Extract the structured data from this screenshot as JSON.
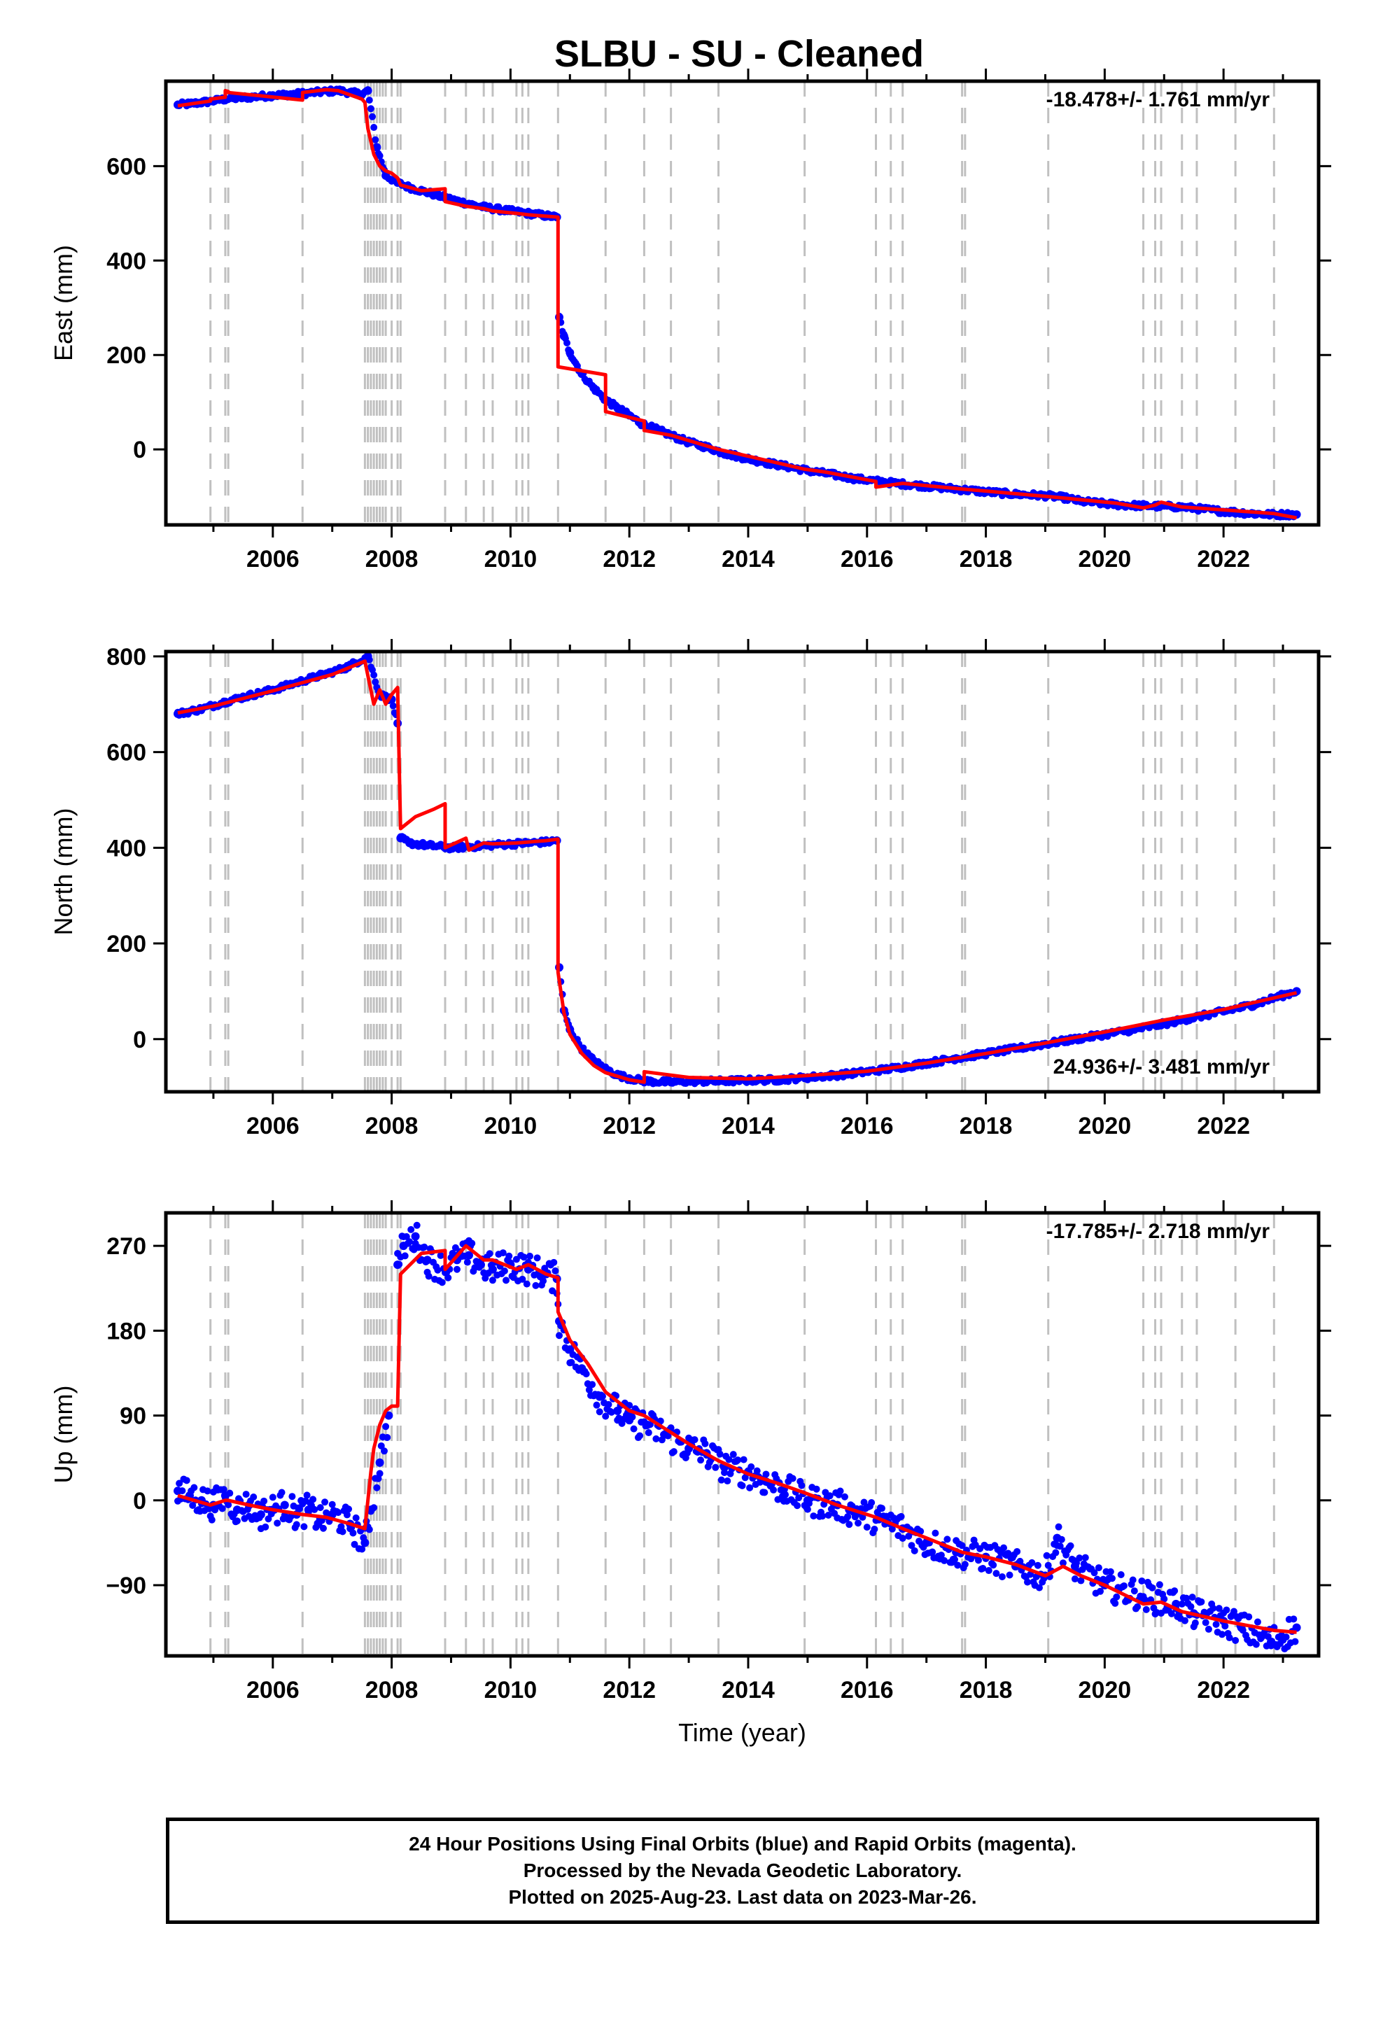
{
  "title": "SLBU  - SU - Cleaned",
  "footer": {
    "line1": "24 Hour Positions Using Final Orbits (blue) and Rapid Orbits (magenta).",
    "line2": "Processed by the Nevada Geodetic Laboratory.",
    "line3": "Plotted on 2025-Aug-23. Last data on 2023-Mar-26."
  },
  "colors": {
    "observed": "#0000ff",
    "model": "#ff0000",
    "offset_line": "#c0c0c0"
  },
  "chart_data": [
    {
      "type": "scatter",
      "panel": "east",
      "xlabel": "",
      "ylabel": "East (mm)",
      "xlim": [
        2004.2,
        2023.6
      ],
      "ylim": [
        -160,
        780
      ],
      "x_ticks": [
        2006,
        2008,
        2010,
        2012,
        2014,
        2016,
        2018,
        2020,
        2022
      ],
      "y_ticks": [
        0,
        200,
        400,
        600
      ],
      "rate_label": "-18.478+/- 1.761 mm/yr",
      "grid": false,
      "offset_epochs": [
        2004.95,
        2005.2,
        2005.25,
        2006.5,
        2007.55,
        2007.6,
        2007.65,
        2007.7,
        2007.75,
        2007.8,
        2007.85,
        2007.9,
        2008.0,
        2008.1,
        2008.15,
        2008.9,
        2009.25,
        2009.55,
        2009.7,
        2010.1,
        2010.2,
        2010.3,
        2010.8,
        2011.6,
        2012.25,
        2012.7,
        2013.5,
        2014.95,
        2016.15,
        2016.4,
        2016.6,
        2017.6,
        2017.65,
        2019.05,
        2020.65,
        2020.85,
        2020.95,
        2021.3,
        2021.55,
        2022.2,
        2022.85
      ],
      "series": [
        {
          "kind": "observed",
          "x": [
            2004.4,
            2004.6,
            2004.8,
            2005.0,
            2005.2,
            2005.5,
            2005.8,
            2006.0,
            2006.3,
            2006.5,
            2006.8,
            2007.1,
            2007.5,
            2007.6,
            2007.75,
            2007.9,
            2008.1,
            2008.3,
            2008.5,
            2009.0,
            2009.3,
            2009.6,
            2010.0,
            2010.3,
            2010.6,
            2010.78,
            2010.82,
            2010.9,
            2011.0,
            2011.2,
            2011.4,
            2011.6,
            2011.8,
            2012.0,
            2012.2,
            2012.4,
            2012.7,
            2013.0,
            2013.3,
            2013.6,
            2014.0,
            2014.3,
            2014.6,
            2015.0,
            2015.5,
            2015.8,
            2016.5,
            2017.0,
            2017.5,
            2018.0,
            2018.5,
            2019.0,
            2019.3,
            2019.6,
            2020.0,
            2020.3,
            2021.3,
            2021.6,
            2021.9,
            2022.2,
            2022.5,
            2022.8,
            2023.23
          ],
          "y": [
            730,
            732,
            735,
            738,
            742,
            745,
            748,
            750,
            752,
            754,
            757,
            760,
            752,
            760,
            640,
            580,
            565,
            555,
            548,
            530,
            520,
            512,
            505,
            500,
            495,
            492,
            280,
            240,
            205,
            160,
            130,
            105,
            88,
            72,
            55,
            45,
            30,
            15,
            5,
            -8,
            -20,
            -28,
            -35,
            -45,
            -55,
            -62,
            -72,
            -78,
            -84,
            -90,
            -95,
            -98,
            -102,
            -110,
            -115,
            -118,
            -122,
            -126,
            -130,
            -133,
            -136,
            -138,
            -138
          ]
        },
        {
          "kind": "model",
          "x": [
            2004.4,
            2004.95,
            2004.95,
            2005.2,
            2005.2,
            2005.25,
            2005.25,
            2006.5,
            2006.5,
            2006.9,
            2007.1,
            2007.5,
            2007.55,
            2007.6,
            2007.7,
            2007.8,
            2007.9,
            2008.0,
            2008.1,
            2008.15,
            2008.5,
            2008.9,
            2008.9,
            2009.25,
            2009.55,
            2009.7,
            2010.1,
            2010.3,
            2010.6,
            2010.8,
            2010.8,
            2011.6,
            2011.6,
            2012.25,
            2012.25,
            2012.7,
            2013.5,
            2014.95,
            2015.3,
            2016.15,
            2016.15,
            2016.6,
            2017.6,
            2019.05,
            2020.2,
            2020.65,
            2020.85,
            2020.95,
            2021.3,
            2022.2,
            2022.85,
            2023.23
          ],
          "y": [
            728,
            738,
            742,
            746,
            760,
            758,
            756,
            740,
            756,
            762,
            760,
            742,
            735,
            680,
            625,
            600,
            590,
            585,
            575,
            560,
            548,
            552,
            525,
            515,
            510,
            505,
            500,
            497,
            494,
            492,
            175,
            158,
            80,
            60,
            40,
            30,
            0,
            -42,
            -48,
            -68,
            -80,
            -72,
            -84,
            -100,
            -114,
            -124,
            -118,
            -112,
            -122,
            -130,
            -136,
            -145
          ]
        }
      ]
    },
    {
      "type": "scatter",
      "panel": "north",
      "xlabel": "",
      "ylabel": "North (mm)",
      "xlim": [
        2004.2,
        2023.6
      ],
      "ylim": [
        -110,
        810
      ],
      "x_ticks": [
        2006,
        2008,
        2010,
        2012,
        2014,
        2016,
        2018,
        2020,
        2022
      ],
      "y_ticks": [
        0,
        200,
        400,
        600,
        800
      ],
      "rate_label": "24.936+/- 3.481 mm/yr",
      "grid": false,
      "series": [
        {
          "kind": "observed",
          "x": [
            2004.4,
            2004.8,
            2005.2,
            2005.6,
            2006.0,
            2006.4,
            2006.8,
            2007.2,
            2007.6,
            2007.8,
            2008.0,
            2008.1,
            2008.15,
            2008.3,
            2008.6,
            2009.0,
            2009.3,
            2009.6,
            2010.0,
            2010.3,
            2010.6,
            2010.78,
            2010.82,
            2010.9,
            2011.0,
            2011.2,
            2011.4,
            2011.6,
            2011.8,
            2012.0,
            2012.3,
            2012.7,
            2013.0,
            2013.5,
            2014.0,
            2014.5,
            2015.0,
            2015.5,
            2016.0,
            2016.5,
            2017.0,
            2017.5,
            2018.0,
            2018.5,
            2019.0,
            2019.5,
            2020.0,
            2020.5,
            2021.0,
            2021.5,
            2022.0,
            2022.5,
            2022.9,
            2023.23
          ],
          "y": [
            680,
            690,
            705,
            718,
            730,
            745,
            760,
            775,
            800,
            720,
            710,
            660,
            420,
            410,
            405,
            400,
            402,
            405,
            408,
            410,
            412,
            415,
            150,
            60,
            20,
            -20,
            -45,
            -62,
            -75,
            -82,
            -88,
            -90,
            -88,
            -88,
            -86,
            -85,
            -80,
            -75,
            -68,
            -60,
            -50,
            -40,
            -30,
            -20,
            -10,
            0,
            10,
            20,
            32,
            45,
            58,
            72,
            88,
            100
          ]
        },
        {
          "kind": "model",
          "x": [
            2004.4,
            2005.0,
            2005.5,
            2006.0,
            2006.5,
            2007.0,
            2007.55,
            2007.6,
            2007.7,
            2007.8,
            2007.9,
            2008.0,
            2008.1,
            2008.15,
            2008.4,
            2008.7,
            2008.9,
            2008.9,
            2009.25,
            2009.3,
            2009.55,
            2009.7,
            2010.1,
            2010.3,
            2010.6,
            2010.8,
            2010.8,
            2010.9,
            2011.0,
            2011.2,
            2011.4,
            2011.6,
            2012.0,
            2012.25,
            2012.25,
            2013.0,
            2014.0,
            2015.0,
            2016.0,
            2017.0,
            2018.0,
            2019.0,
            2020.0,
            2021.0,
            2022.0,
            2023.23
          ],
          "y": [
            682,
            696,
            712,
            728,
            745,
            762,
            790,
            760,
            700,
            730,
            700,
            720,
            735,
            440,
            465,
            480,
            492,
            400,
            420,
            395,
            410,
            408,
            410,
            412,
            415,
            418,
            140,
            55,
            10,
            -30,
            -55,
            -70,
            -85,
            -90,
            -68,
            -80,
            -83,
            -76,
            -67,
            -50,
            -30,
            -8,
            15,
            40,
            62,
            97
          ]
        }
      ]
    },
    {
      "type": "scatter",
      "panel": "up",
      "xlabel": "Time (year)",
      "ylabel": "Up (mm)",
      "xlim": [
        2004.2,
        2023.6
      ],
      "ylim": [
        -165,
        305
      ],
      "x_ticks": [
        2006,
        2008,
        2010,
        2012,
        2014,
        2016,
        2018,
        2020,
        2022
      ],
      "y_ticks": [
        -90,
        0,
        90,
        180,
        270
      ],
      "y_tick_labels": [
        "−90",
        "0",
        "90",
        "180",
        "270"
      ],
      "rate_label": "-17.785+/- 2.718 mm/yr",
      "grid": false,
      "series": [
        {
          "kind": "observed",
          "x": [
            2004.4,
            2004.6,
            2004.8,
            2005.0,
            2005.2,
            2005.4,
            2005.6,
            2005.8,
            2006.0,
            2006.2,
            2006.4,
            2006.6,
            2006.8,
            2007.0,
            2007.3,
            2007.55,
            2007.65,
            2007.8,
            2007.95,
            2008.1,
            2008.2,
            2008.4,
            2008.6,
            2008.9,
            2009.1,
            2009.3,
            2009.5,
            2009.7,
            2010.0,
            2010.3,
            2010.6,
            2010.78,
            2010.82,
            2011.0,
            2011.2,
            2011.5,
            2011.8,
            2012.0,
            2012.3,
            2012.6,
            2013.0,
            2013.3,
            2013.6,
            2014.0,
            2014.3,
            2014.6,
            2015.0,
            2015.5,
            2015.7,
            2016.2,
            2016.6,
            2017.0,
            2017.5,
            2018.0,
            2018.5,
            2019.0,
            2019.2,
            2019.5,
            2020.0,
            2021.2,
            2021.5,
            2022.0,
            2022.3,
            2022.8,
            2023.23
          ],
          "y": [
            10,
            5,
            0,
            -5,
            5,
            -10,
            -5,
            -15,
            -10,
            -5,
            -15,
            -10,
            -20,
            -15,
            -25,
            -45,
            -10,
            40,
            90,
            250,
            270,
            280,
            255,
            245,
            255,
            260,
            250,
            245,
            250,
            245,
            240,
            235,
            190,
            160,
            140,
            110,
            95,
            85,
            80,
            70,
            55,
            50,
            35,
            30,
            20,
            12,
            0,
            -5,
            -10,
            -20,
            -30,
            -45,
            -55,
            -60,
            -70,
            -80,
            -40,
            -70,
            -90,
            -110,
            -120,
            -128,
            -135,
            -150,
            -135
          ]
        },
        {
          "kind": "model",
          "x": [
            2004.4,
            2004.95,
            2005.2,
            2005.25,
            2005.6,
            2006.0,
            2006.5,
            2006.9,
            2007.3,
            2007.55,
            2007.65,
            2007.7,
            2007.8,
            2007.9,
            2008.0,
            2008.1,
            2008.15,
            2008.5,
            2008.9,
            2008.9,
            2009.25,
            2009.55,
            2009.7,
            2010.1,
            2010.3,
            2010.6,
            2010.8,
            2010.8,
            2011.0,
            2011.3,
            2011.6,
            2012.0,
            2012.25,
            2012.7,
            2013.0,
            2013.5,
            2014.0,
            2014.5,
            2014.95,
            2015.5,
            2016.15,
            2016.6,
            2017.0,
            2017.6,
            2018.0,
            2018.5,
            2019.0,
            2019.3,
            2019.6,
            2020.0,
            2020.65,
            2020.95,
            2021.3,
            2022.0,
            2022.85,
            2023.23
          ],
          "y": [
            5,
            -5,
            0,
            0,
            -5,
            -10,
            -15,
            -18,
            -25,
            -30,
            30,
            55,
            80,
            95,
            100,
            100,
            240,
            262,
            265,
            245,
            270,
            255,
            255,
            245,
            250,
            240,
            236,
            200,
            170,
            145,
            115,
            95,
            90,
            72,
            60,
            42,
            28,
            18,
            8,
            -5,
            -18,
            -30,
            -40,
            -55,
            -60,
            -68,
            -80,
            -70,
            -80,
            -90,
            -110,
            -108,
            -118,
            -128,
            -138,
            -140
          ]
        }
      ]
    }
  ]
}
